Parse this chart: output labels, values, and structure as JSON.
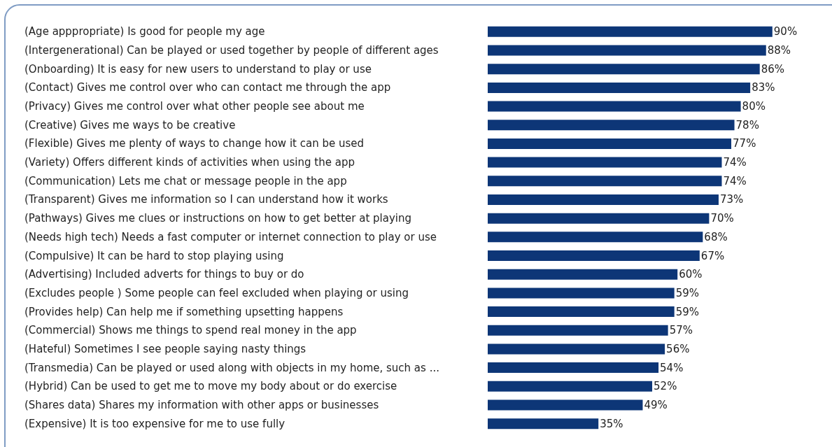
{
  "chart_data": {
    "type": "bar",
    "orientation": "horizontal",
    "color": "#0d3677",
    "categories": [
      "(Age apppropriate) Is good for people my age",
      "(Intergenerational) Can be played or used together by people of different ages",
      "(Onboarding) It is easy for new users to understand to play or use",
      "(Contact) Gives me control over who can contact me through the app",
      "(Privacy) Gives me control over what other people see about me",
      "(Creative) Gives me ways to be creative",
      "(Flexible) Gives me plenty of ways to change how it can be used",
      "(Variety) Offers different kinds of activities when using the app",
      "(Communication) Lets me chat or message people in the app",
      "(Transparent) Gives me information so I can understand how it works",
      "(Pathways) Gives me clues or instructions on how to get better at playing",
      "(Needs high tech) Needs a fast computer or internet connection to play or use",
      "(Compulsive) It can be hard to stop playing using",
      "(Advertising) Included adverts for things to buy or do",
      "(Excludes people ) Some people can feel excluded when playing or using",
      "(Provides help) Can help me if something upsetting happens",
      "(Commercial) Shows me things to spend real money in the app",
      "(Hateful) Sometimes I see people saying nasty things",
      "(Transmedia) Can be played or used along with objects in my home, such as ...",
      "(Hybrid) Can be used to get me to move my body about or do exercise",
      "(Shares data) Shares my information with other apps or businesses",
      "(Expensive) It is too expensive for me to use fully"
    ],
    "values": [
      90,
      88,
      86,
      83,
      80,
      78,
      77,
      74,
      74,
      73,
      70,
      68,
      67,
      60,
      59,
      59,
      57,
      56,
      54,
      52,
      49,
      35
    ],
    "value_labels": [
      "90%",
      "88%",
      "86%",
      "83%",
      "80%",
      "78%",
      "77%",
      "74%",
      "74%",
      "73%",
      "70%",
      "68%",
      "67%",
      "60%",
      "59%",
      "59%",
      "57%",
      "56%",
      "54%",
      "52%",
      "49%",
      "35%"
    ]
  }
}
